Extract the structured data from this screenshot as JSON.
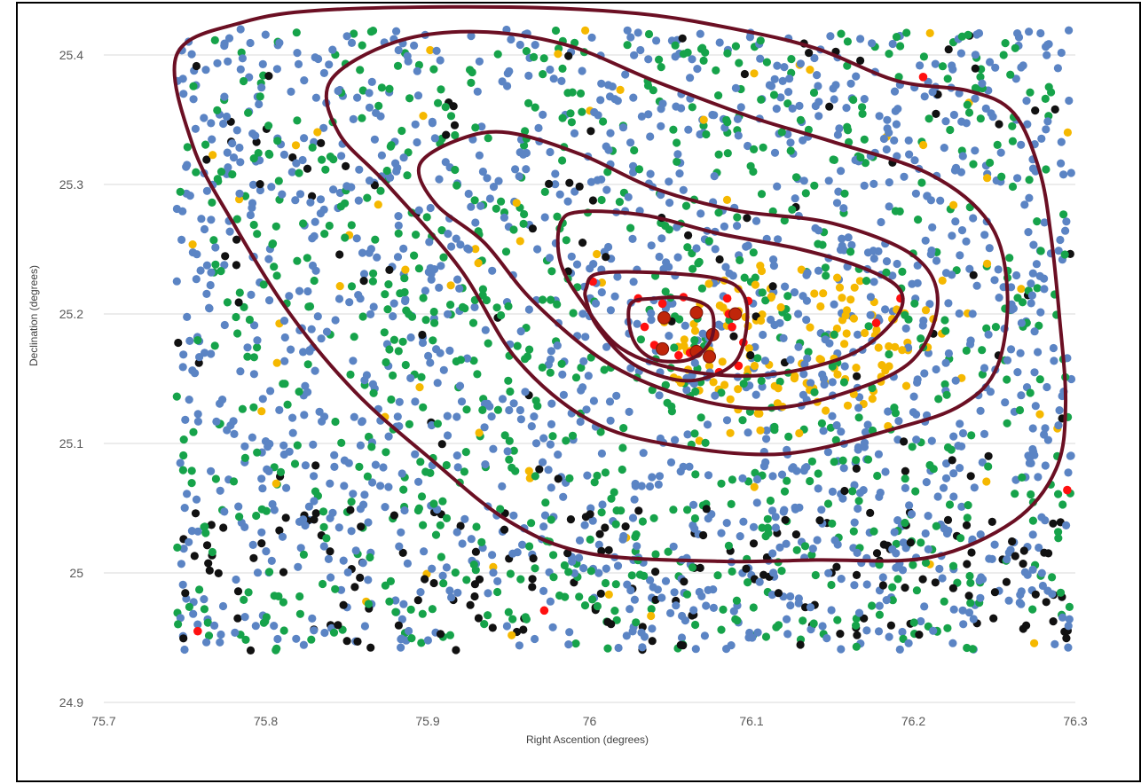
{
  "chart_data": {
    "type": "scatter",
    "title": "",
    "xlabel": "Right Ascention  (degrees)",
    "ylabel": "Declination (degrees)",
    "xlim": [
      75.7,
      76.3
    ],
    "ylim": [
      24.9,
      25.4
    ],
    "x_ticks": [
      "75.7",
      "75.8",
      "75.9",
      "76",
      "76.1",
      "76.2",
      "76.3"
    ],
    "y_ticks": [
      "24.9",
      "25",
      "25.1",
      "25.2",
      "25.3",
      "25.4"
    ],
    "grid": "horizontal",
    "legend": "none",
    "field": {
      "x_range": [
        75.745,
        76.298
      ],
      "y_range": [
        24.94,
        25.42
      ]
    },
    "series": [
      {
        "color": "#5b84c4",
        "approx_count": 1500
      },
      {
        "color": "#16a34a",
        "approx_count": 900
      },
      {
        "color": "#f5b800",
        "approx_count": 190
      },
      {
        "color": "#111111",
        "approx_count": 260
      },
      {
        "color": "#ff1010",
        "points": [
          [
            76.002,
            25.225
          ],
          [
            76.03,
            25.212
          ],
          [
            76.045,
            25.208
          ],
          [
            76.058,
            25.213
          ],
          [
            76.085,
            25.212
          ],
          [
            76.098,
            25.21
          ],
          [
            76.034,
            25.19
          ],
          [
            76.04,
            25.176
          ],
          [
            76.055,
            25.168
          ],
          [
            76.088,
            25.19
          ],
          [
            76.095,
            25.178
          ],
          [
            76.092,
            25.16
          ],
          [
            76.08,
            25.155
          ],
          [
            76.086,
            25.2
          ],
          [
            76.062,
            25.17
          ],
          [
            76.177,
            25.193
          ],
          [
            76.192,
            25.212
          ],
          [
            76.206,
            25.383
          ],
          [
            76.295,
            25.064
          ],
          [
            75.758,
            24.955
          ],
          [
            75.972,
            24.971
          ]
        ]
      },
      {
        "color": "#c0260a",
        "points": [
          [
            76.046,
            25.197
          ],
          [
            76.066,
            25.201
          ],
          [
            76.09,
            25.2
          ],
          [
            76.076,
            25.184
          ],
          [
            76.066,
            25.171
          ],
          [
            76.074,
            25.167
          ],
          [
            76.045,
            25.173
          ]
        ]
      }
    ],
    "contours": [
      [
        [
          75.745,
          25.4
        ],
        [
          75.785,
          25.425
        ],
        [
          75.84,
          25.435
        ],
        [
          75.95,
          25.437
        ],
        [
          76.03,
          25.432
        ],
        [
          76.09,
          25.42
        ],
        [
          76.14,
          25.405
        ],
        [
          76.19,
          25.38
        ],
        [
          76.235,
          25.372
        ],
        [
          76.262,
          25.355
        ],
        [
          76.278,
          25.31
        ],
        [
          76.285,
          25.26
        ],
        [
          76.29,
          25.2
        ],
        [
          76.294,
          25.13
        ],
        [
          76.288,
          25.08
        ],
        [
          76.262,
          25.04
        ],
        [
          76.21,
          25.012
        ],
        [
          76.14,
          25.01
        ],
        [
          76.08,
          25.009
        ],
        [
          76.0,
          25.015
        ],
        [
          75.95,
          25.04
        ],
        [
          75.9,
          25.09
        ],
        [
          75.855,
          25.14
        ],
        [
          75.815,
          25.2
        ],
        [
          75.78,
          25.27
        ],
        [
          75.755,
          25.33
        ],
        [
          75.745,
          25.4
        ]
      ],
      [
        [
          75.84,
          25.38
        ],
        [
          75.88,
          25.41
        ],
        [
          75.93,
          25.418
        ],
        [
          75.985,
          25.408
        ],
        [
          76.04,
          25.38
        ],
        [
          76.1,
          25.352
        ],
        [
          76.15,
          25.333
        ],
        [
          76.21,
          25.308
        ],
        [
          76.247,
          25.27
        ],
        [
          76.258,
          25.218
        ],
        [
          76.252,
          25.16
        ],
        [
          76.23,
          25.13
        ],
        [
          76.19,
          25.112
        ],
        [
          76.12,
          25.092
        ],
        [
          76.05,
          25.099
        ],
        [
          76.0,
          25.118
        ],
        [
          75.955,
          25.165
        ],
        [
          75.92,
          25.235
        ],
        [
          75.875,
          25.3
        ],
        [
          75.845,
          25.34
        ],
        [
          75.84,
          25.38
        ]
      ],
      [
        [
          75.895,
          25.315
        ],
        [
          75.92,
          25.335
        ],
        [
          75.95,
          25.34
        ],
        [
          75.995,
          25.323
        ],
        [
          76.04,
          25.297
        ],
        [
          76.09,
          25.28
        ],
        [
          76.15,
          25.27
        ],
        [
          76.2,
          25.245
        ],
        [
          76.215,
          25.21
        ],
        [
          76.2,
          25.165
        ],
        [
          76.16,
          25.14
        ],
        [
          76.11,
          25.127
        ],
        [
          76.06,
          25.136
        ],
        [
          76.01,
          25.163
        ],
        [
          75.965,
          25.21
        ],
        [
          75.935,
          25.255
        ],
        [
          75.905,
          25.285
        ],
        [
          75.895,
          25.315
        ]
      ],
      [
        [
          75.982,
          25.27
        ],
        [
          75.995,
          25.279
        ],
        [
          76.035,
          25.276
        ],
        [
          76.08,
          25.262
        ],
        [
          76.13,
          25.25
        ],
        [
          76.17,
          25.235
        ],
        [
          76.192,
          25.218
        ],
        [
          76.188,
          25.195
        ],
        [
          76.16,
          25.168
        ],
        [
          76.11,
          25.153
        ],
        [
          76.06,
          25.156
        ],
        [
          76.02,
          25.173
        ],
        [
          75.995,
          25.21
        ],
        [
          75.982,
          25.24
        ],
        [
          75.982,
          25.27
        ]
      ],
      [
        [
          75.998,
          25.22
        ],
        [
          76.005,
          25.231
        ],
        [
          76.04,
          25.232
        ],
        [
          76.08,
          25.227
        ],
        [
          76.095,
          25.215
        ],
        [
          76.097,
          25.19
        ],
        [
          76.09,
          25.163
        ],
        [
          76.07,
          25.15
        ],
        [
          76.05,
          25.15
        ],
        [
          76.025,
          25.163
        ],
        [
          76.005,
          25.19
        ],
        [
          75.998,
          25.21
        ],
        [
          75.998,
          25.22
        ]
      ],
      [
        [
          76.025,
          25.207
        ],
        [
          76.04,
          25.212
        ],
        [
          76.06,
          25.212
        ],
        [
          76.075,
          25.203
        ],
        [
          76.075,
          25.18
        ],
        [
          76.062,
          25.165
        ],
        [
          76.04,
          25.165
        ],
        [
          76.027,
          25.18
        ],
        [
          76.025,
          25.207
        ]
      ]
    ],
    "contour_color": "#6b0f23"
  }
}
